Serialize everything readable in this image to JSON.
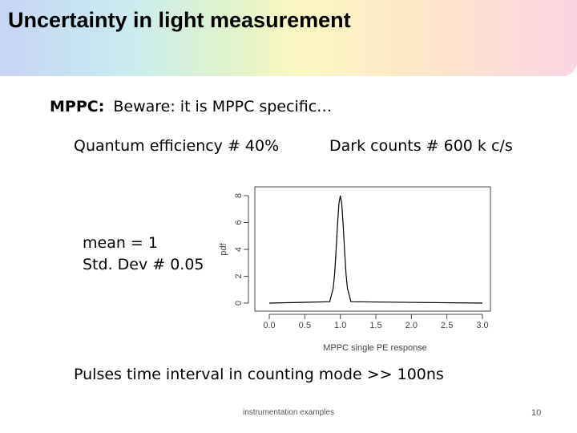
{
  "header": {
    "title": "Uncertainty in light measurement"
  },
  "body": {
    "intro_label": "MPPC:",
    "intro_text": "Beware: it is MPPC specific…",
    "quantum_efficiency": "Quantum efficiency # 40%",
    "dark_counts": "Dark counts # 600 k c/s",
    "mean": "mean = 1",
    "std_dev": "Std. Dev # 0.05",
    "pulses": "Pulses time interval in counting mode >> 100ns"
  },
  "footer": {
    "text": "instrumentation examples",
    "page": "10"
  },
  "chart_data": {
    "type": "line",
    "xlabel": "MPPC single PE response",
    "ylabel": "pdf",
    "color": "#000000",
    "x": [
      0,
      0.85,
      0.9,
      0.92,
      0.94,
      0.96,
      0.98,
      1.0,
      1.02,
      1.04,
      1.06,
      1.08,
      1.1,
      1.15,
      3.0
    ],
    "values": [
      0,
      0.1,
      1.1,
      2.2,
      3.9,
      5.8,
      7.4,
      8.0,
      7.4,
      5.8,
      3.9,
      2.2,
      1.1,
      0.1,
      0
    ],
    "xlim": [
      0,
      3
    ],
    "ylim": [
      0,
      8
    ],
    "xticks": [
      {
        "value": 0,
        "label": "0.0"
      },
      {
        "value": 0.5,
        "label": "0.5"
      },
      {
        "value": 1,
        "label": "1.0"
      },
      {
        "value": 1.5,
        "label": "1.5"
      },
      {
        "value": 2,
        "label": "2.0"
      },
      {
        "value": 2.5,
        "label": "2.5"
      },
      {
        "value": 3,
        "label": "3.0"
      }
    ],
    "yticks": [
      0,
      2,
      4,
      6,
      8
    ]
  }
}
